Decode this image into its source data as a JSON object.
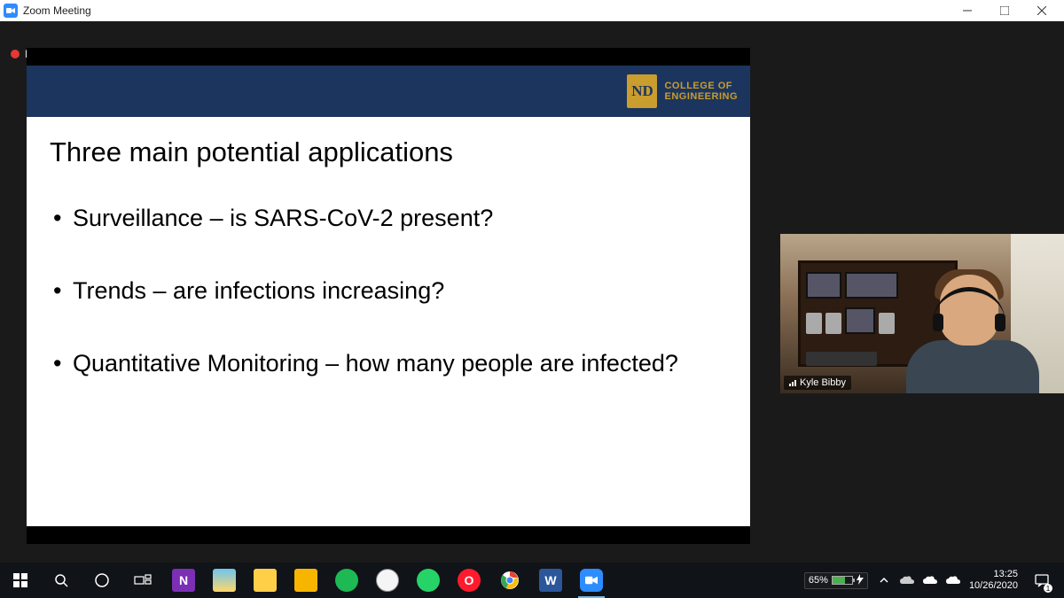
{
  "window": {
    "title": "Zoom Meeting"
  },
  "recording": {
    "label": "Recording"
  },
  "slide": {
    "org_logo_text": "ND",
    "org_line1": "COLLEGE OF",
    "org_line2": "ENGINEERING",
    "title": "Three main potential applications",
    "bullets": [
      "Surveillance – is SARS-CoV-2 present?",
      "Trends – are infections increasing?",
      "Quantitative Monitoring – how many people are infected?"
    ],
    "header_color": "#1c355e",
    "accent_color": "#c99d2e",
    "body_bg": "#ffffff",
    "title_fontsize": 31,
    "bullet_fontsize": 27
  },
  "speaker": {
    "name": "Kyle Bibby"
  },
  "taskbar": {
    "battery_pct": "65%",
    "battery_fill_pct": 65,
    "time": "13:25",
    "date": "10/26/2020",
    "notif_count": "1",
    "items": [
      {
        "name": "start",
        "bg": "transparent"
      },
      {
        "name": "search",
        "bg": "transparent"
      },
      {
        "name": "cortana",
        "bg": "transparent"
      },
      {
        "name": "task-view",
        "bg": "transparent"
      },
      {
        "name": "onenote",
        "bg": "#7b2fb5",
        "glyph": "N"
      },
      {
        "name": "file-explorer",
        "bg": "#ffcf48"
      },
      {
        "name": "folder",
        "bg": "#ffcf48"
      },
      {
        "name": "sticky-notes",
        "bg": "#f7b500"
      },
      {
        "name": "spotify",
        "bg": "#1db954"
      },
      {
        "name": "clock-app",
        "bg": "#f5f5f5"
      },
      {
        "name": "whatsapp",
        "bg": "#25d366"
      },
      {
        "name": "opera",
        "bg": "#ff1b2d",
        "glyph": "O"
      },
      {
        "name": "chrome",
        "bg": "#ffffff"
      },
      {
        "name": "word",
        "bg": "#2b579a",
        "glyph": "W"
      },
      {
        "name": "zoom",
        "bg": "#2d8cff",
        "active": true
      }
    ]
  },
  "colors": {
    "black": "#000000",
    "taskbar_bg": "#101318",
    "titlebar_bg": "#ffffff"
  }
}
